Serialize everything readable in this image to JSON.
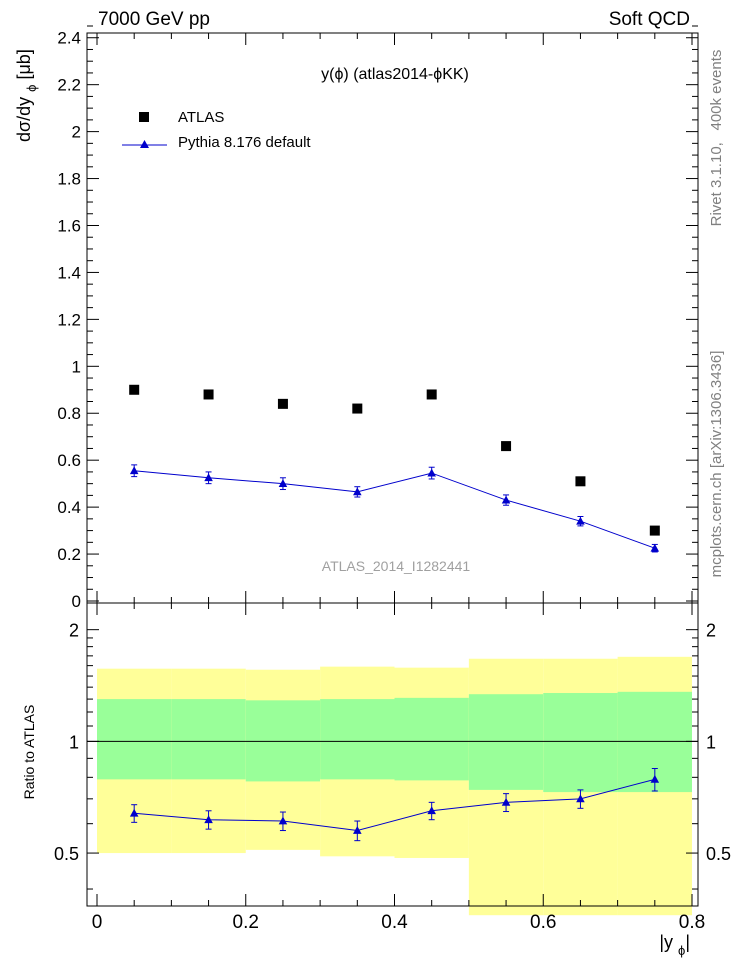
{
  "header": {
    "left": "7000 GeV pp",
    "right": "Soft QCD"
  },
  "side_labels": {
    "top": "Rivet 3.1.10,  400k events",
    "bottom": "mcplots.cern.ch [arXiv:1306.3436]"
  },
  "chart_data": [
    {
      "type": "scatter",
      "title": "y(ϕ) (atlas2014-ϕKK)",
      "ylabel": "dσ/dy_ϕ [μb]",
      "watermark": "ATLAS_2014_I1282441",
      "xlim": [
        0,
        0.8
      ],
      "ylim": [
        0,
        2.45
      ],
      "yticks": [
        "0",
        "0.2",
        "0.4",
        "0.6",
        "0.8",
        "1",
        "1.2",
        "1.4",
        "1.6",
        "1.8",
        "2",
        "2.2",
        "2.4"
      ],
      "legend_position": "top-left",
      "series": [
        {
          "name": "ATLAS",
          "marker": "square",
          "color": "#000000",
          "x": [
            0.05,
            0.15,
            0.25,
            0.35,
            0.45,
            0.55,
            0.65,
            0.75
          ],
          "y": [
            0.9,
            0.88,
            0.84,
            0.82,
            0.88,
            0.66,
            0.51,
            0.3
          ]
        },
        {
          "name": "Pythia 8.176 default",
          "marker": "triangle",
          "color": "#0000cc",
          "x": [
            0.05,
            0.15,
            0.25,
            0.35,
            0.45,
            0.55,
            0.65,
            0.75
          ],
          "y": [
            0.555,
            0.525,
            0.5,
            0.465,
            0.545,
            0.43,
            0.34,
            0.225
          ],
          "yerr": [
            0.025,
            0.025,
            0.025,
            0.022,
            0.025,
            0.022,
            0.02,
            0.016
          ]
        }
      ]
    },
    {
      "type": "scatter",
      "ylabel": "Ratio to ATLAS",
      "xlabel": "|y_ϕ|",
      "xlim": [
        0,
        0.8
      ],
      "ylim": [
        0.36,
        2.36
      ],
      "log_scale_y": true,
      "xticks": [
        "0",
        "0.2",
        "0.4",
        "0.6",
        "0.8"
      ],
      "yticks": [
        "0.5",
        "1",
        "2"
      ],
      "reference_line": 1,
      "bands": {
        "bin_edges": [
          0,
          0.1,
          0.2,
          0.3,
          0.4,
          0.5,
          0.6,
          0.7,
          0.8
        ],
        "stat_color": "#99ff99",
        "total_color": "#ffff99",
        "stat_low": [
          0.79,
          0.79,
          0.78,
          0.79,
          0.785,
          0.74,
          0.73,
          0.73
        ],
        "stat_high": [
          1.3,
          1.3,
          1.29,
          1.3,
          1.31,
          1.34,
          1.35,
          1.36
        ],
        "total_low": [
          0.5,
          0.5,
          0.51,
          0.49,
          0.485,
          0.34,
          0.34,
          0.34
        ],
        "total_high": [
          1.57,
          1.57,
          1.56,
          1.59,
          1.58,
          1.67,
          1.67,
          1.69
        ]
      },
      "series": [
        {
          "name": "Pythia 8.176 default",
          "marker": "triangle",
          "color": "#0000cc",
          "x": [
            0.05,
            0.15,
            0.25,
            0.35,
            0.45,
            0.55,
            0.65,
            0.75
          ],
          "y": [
            0.64,
            0.615,
            0.61,
            0.575,
            0.65,
            0.685,
            0.7,
            0.79
          ],
          "yerr": [
            0.035,
            0.035,
            0.035,
            0.035,
            0.035,
            0.038,
            0.04,
            0.055
          ]
        }
      ]
    }
  ]
}
